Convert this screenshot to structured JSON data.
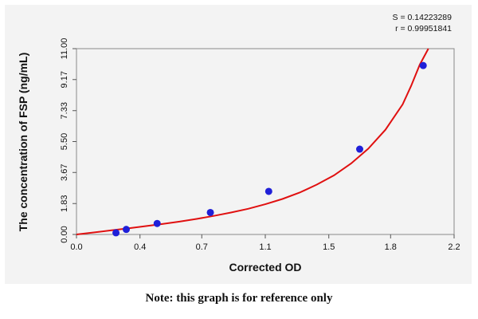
{
  "chart_data": {
    "type": "scatter",
    "title": "",
    "xlabel": "Corrected OD",
    "ylabel": "The concentration of FSP (ng/mL)",
    "x_ticks": [
      "0.0",
      "0.4",
      "0.7",
      "1.1",
      "1.5",
      "1.8",
      "2.2"
    ],
    "x_tick_values": [
      0.0,
      0.37,
      0.73,
      1.1,
      1.47,
      1.83,
      2.2
    ],
    "y_ticks": [
      "0.00",
      "1.83",
      "3.67",
      "5.50",
      "7.33",
      "9.17",
      "11.00"
    ],
    "y_tick_values": [
      0.0,
      1.83,
      3.67,
      5.5,
      7.33,
      9.17,
      11.0
    ],
    "xlim": [
      0.0,
      2.2
    ],
    "ylim": [
      0.0,
      11.0
    ],
    "grid": false,
    "series": [
      {
        "points": [
          {
            "x": 0.23,
            "y": 0.1
          },
          {
            "x": 0.29,
            "y": 0.3
          },
          {
            "x": 0.47,
            "y": 0.65
          },
          {
            "x": 0.78,
            "y": 1.3
          },
          {
            "x": 1.12,
            "y": 2.55
          },
          {
            "x": 1.65,
            "y": 5.05
          },
          {
            "x": 2.02,
            "y": 10.0
          }
        ],
        "curve": [
          [
            0.0,
            0.0
          ],
          [
            0.1,
            0.12
          ],
          [
            0.2,
            0.24
          ],
          [
            0.3,
            0.36
          ],
          [
            0.4,
            0.49
          ],
          [
            0.5,
            0.62
          ],
          [
            0.6,
            0.76
          ],
          [
            0.7,
            0.92
          ],
          [
            0.8,
            1.1
          ],
          [
            0.9,
            1.3
          ],
          [
            1.0,
            1.52
          ],
          [
            1.1,
            1.79
          ],
          [
            1.2,
            2.1
          ],
          [
            1.3,
            2.48
          ],
          [
            1.4,
            2.95
          ],
          [
            1.5,
            3.5
          ],
          [
            1.6,
            4.2
          ],
          [
            1.7,
            5.08
          ],
          [
            1.8,
            6.2
          ],
          [
            1.9,
            7.7
          ],
          [
            1.95,
            8.8
          ],
          [
            2.0,
            10.05
          ],
          [
            2.05,
            11.0
          ]
        ]
      }
    ],
    "stats": [
      "S = 0.14223289",
      "r = 0.99951841"
    ],
    "colors": {
      "points": "#1f1fd8",
      "curve": "#e01010",
      "panel": "#f3f3f3"
    }
  },
  "note": "Note: this graph is for reference only"
}
